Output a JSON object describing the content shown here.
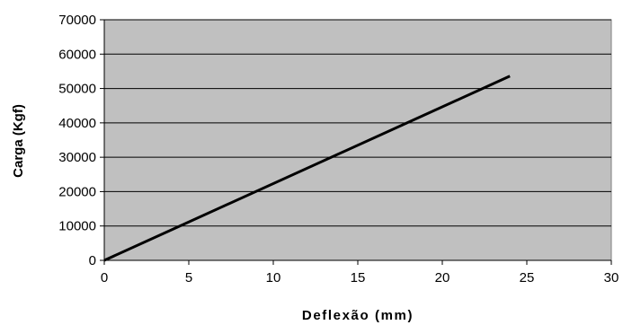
{
  "chart_data": {
    "type": "line",
    "title": "",
    "xlabel": "Deflexão (mm)",
    "ylabel": "Carga (Kgf)",
    "xlim": [
      0,
      30
    ],
    "ylim": [
      0,
      70000
    ],
    "xticks": [
      "0",
      "5",
      "10",
      "15",
      "20",
      "25",
      "30"
    ],
    "yticks": [
      "0",
      "10000",
      "20000",
      "30000",
      "40000",
      "50000",
      "60000",
      "70000"
    ],
    "grid": "horizontal",
    "legend": "none",
    "plot_background": "#c0c0c0",
    "line_color": "#000000",
    "series": [
      {
        "x": [
          0,
          24
        ],
        "y": [
          0,
          53600
        ]
      }
    ]
  }
}
